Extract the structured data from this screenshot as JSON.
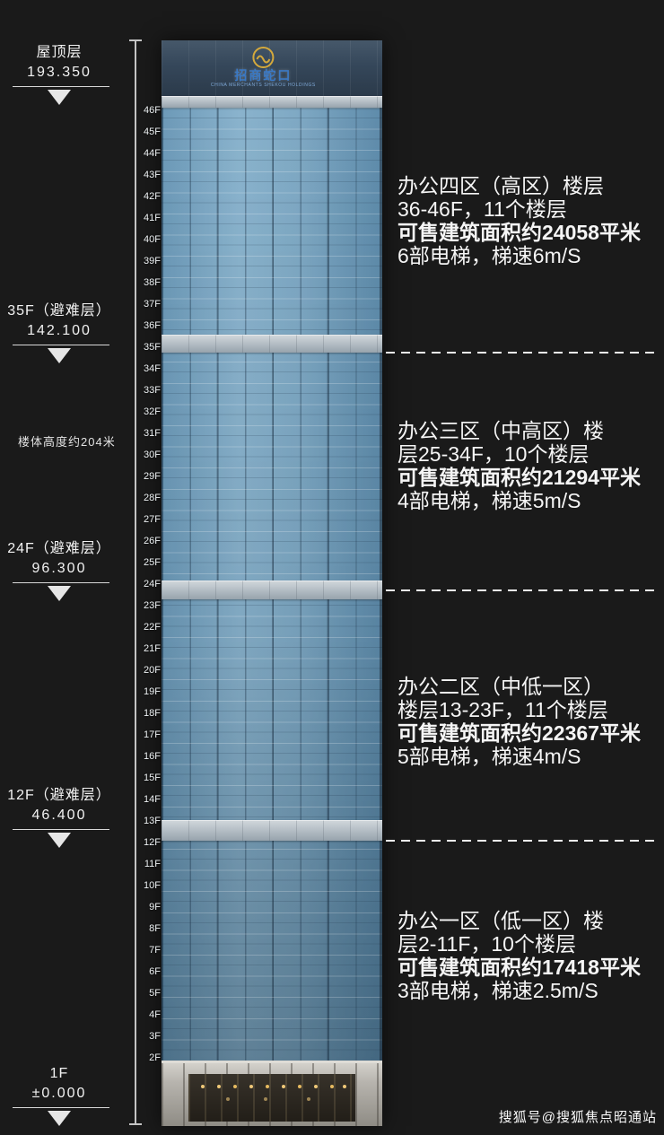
{
  "page": {
    "watermark": "搜狐号@搜狐焦点昭通站"
  },
  "colors": {
    "background": "#1a1a1a",
    "glass_blue": "#7ba7c2",
    "refuge_band_gray": "#aeb8c0",
    "logo_gold": "#d4a93c",
    "logo_blue": "#3b79c4",
    "text_white": "#f5f5f5"
  },
  "building": {
    "logo": {
      "name": "招商蛇口",
      "subtext": "CHINA MERCHANTS SHEKOU HOLDINGS"
    },
    "floors": [
      "46F",
      "45F",
      "44F",
      "43F",
      "42F",
      "41F",
      "40F",
      "39F",
      "38F",
      "37F",
      "36F",
      "35F",
      "34F",
      "33F",
      "32F",
      "31F",
      "30F",
      "29F",
      "28F",
      "27F",
      "26F",
      "25F",
      "24F",
      "23F",
      "22F",
      "21F",
      "20F",
      "19F",
      "18F",
      "17F",
      "16F",
      "15F",
      "14F",
      "13F",
      "12F",
      "11F",
      "10F",
      "9F",
      "8F",
      "7F",
      "6F",
      "5F",
      "4F",
      "3F",
      "2F"
    ]
  },
  "height_note": "楼体高度约204米",
  "left_markers": [
    {
      "label": "屋顶层",
      "value": "193.350"
    },
    {
      "label": "35F（避难层）",
      "value": "142.100"
    },
    {
      "label": "24F（避难层）",
      "value": "96.300"
    },
    {
      "label": "12F（避难层）",
      "value": "46.400"
    },
    {
      "label": "1F",
      "value": "±0.000"
    }
  ],
  "zones": [
    {
      "line1": "办公四区（高区）楼层",
      "line2": "36-46F，11个楼层",
      "line3": "可售建筑面积约24058平米",
      "line4": "6部电梯，梯速6m/S"
    },
    {
      "line1": "办公三区（中高区）楼",
      "line2": "层25-34F，10个楼层",
      "line3": "可售建筑面积约21294平米",
      "line4": "4部电梯，梯速5m/S"
    },
    {
      "line1": "办公二区（中低一区）",
      "line2": "楼层13-23F，11个楼层",
      "line3": "可售建筑面积约22367平米",
      "line4": "5部电梯，梯速4m/S"
    },
    {
      "line1": "办公一区（低一区）楼",
      "line2": "层2-11F，10个楼层",
      "line3": "可售建筑面积约17418平米",
      "line4": "3部电梯，梯速2.5m/S"
    }
  ]
}
